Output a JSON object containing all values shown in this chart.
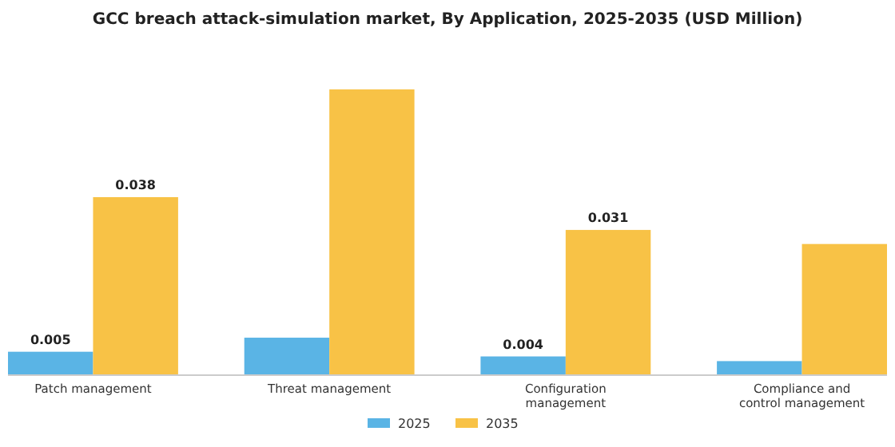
{
  "chart_data": {
    "type": "bar",
    "title": "GCC breach attack-simulation market, By Application, 2025-2035 (USD Million)",
    "categories": [
      "Patch management",
      "Threat management",
      "Configuration management",
      "Compliance and control management"
    ],
    "series": [
      {
        "name": "2025",
        "color": "#5ab4e5",
        "values": [
          0.005,
          0.008,
          0.004,
          0.003
        ],
        "value_labels": [
          "0.005",
          null,
          "0.004",
          null
        ]
      },
      {
        "name": "2035",
        "color": "#f8c246",
        "values": [
          0.038,
          0.061,
          0.031,
          0.028
        ],
        "value_labels": [
          "0.038",
          null,
          "0.031",
          null
        ]
      }
    ],
    "legend": "bottom",
    "grid": false
  }
}
